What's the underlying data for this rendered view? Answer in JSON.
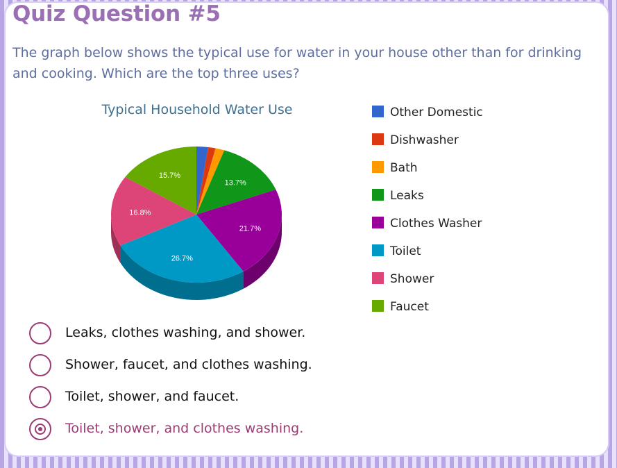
{
  "quiz": {
    "title": "Quiz Question #5",
    "question": "The graph below shows the typical use for water in your house other than for drinking and cooking. Which are the top three uses?",
    "options": [
      {
        "label": "Leaks, clothes washing, and shower.",
        "selected": false
      },
      {
        "label": "Shower, faucet, and clothes washing.",
        "selected": false
      },
      {
        "label": "Toilet, shower, and faucet.",
        "selected": false
      },
      {
        "label": "Toilet, shower, and clothes washing.",
        "selected": true
      }
    ]
  },
  "chart_data": {
    "type": "pie",
    "title": "Typical Household Water Use",
    "categories": [
      "Other Domestic",
      "Dishwasher",
      "Bath",
      "Leaks",
      "Clothes Washer",
      "Toilet",
      "Shower",
      "Faucet"
    ],
    "values": [
      2.2,
      1.4,
      1.7,
      13.7,
      21.7,
      26.7,
      16.8,
      15.7
    ],
    "value_labels": [
      "",
      "",
      "",
      "13.7%",
      "21.7%",
      "26.7%",
      "16.8%",
      "15.7%"
    ],
    "colors": [
      "#3366cc",
      "#dc3912",
      "#ff9900",
      "#109618",
      "#990099",
      "#0099c6",
      "#dd4477",
      "#66aa00"
    ],
    "legend_position": "right",
    "style": "3d"
  }
}
